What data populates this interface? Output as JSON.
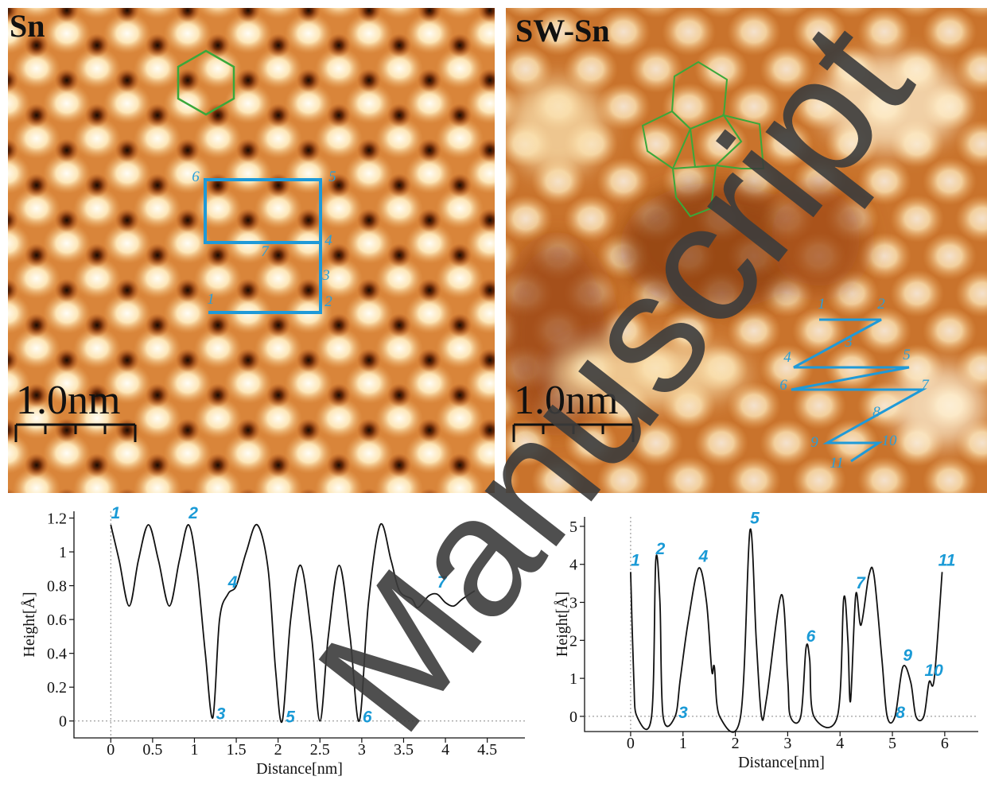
{
  "panels": [
    {
      "label": "Sn",
      "scale_bar": "1.0nm",
      "path_labels": [
        "1",
        "2",
        "3",
        "4",
        "5",
        "6",
        "7"
      ]
    },
    {
      "label": "SW-Sn",
      "scale_bar": "1.0nm",
      "path_labels": [
        "1",
        "2",
        "3",
        "4",
        "5",
        "6",
        "7",
        "8",
        "9",
        "10",
        "11"
      ]
    }
  ],
  "watermark": "Manuscript",
  "chart_data": [
    {
      "type": "line",
      "x_label": "Distance[nm]",
      "y_label": "Height[Å]",
      "color": "#111111",
      "annotation_color": "#1a9ad6",
      "zero_lines": true,
      "x": [
        0,
        0.1,
        0.22,
        0.33,
        0.45,
        0.57,
        0.7,
        0.82,
        0.93,
        1.03,
        1.13,
        1.22,
        1.3,
        1.4,
        1.5,
        1.62,
        1.75,
        1.88,
        1.97,
        2.05,
        2.15,
        2.27,
        2.4,
        2.5,
        2.6,
        2.73,
        2.86,
        2.97,
        3.08,
        3.22,
        3.35,
        3.45,
        3.6,
        3.67,
        3.8,
        3.9,
        4.0,
        4.1,
        4.2,
        4.35
      ],
      "values": [
        1.16,
        0.95,
        0.68,
        0.95,
        1.16,
        0.95,
        0.68,
        0.95,
        1.16,
        0.9,
        0.4,
        0.02,
        0.6,
        0.75,
        0.8,
        1.0,
        1.16,
        0.9,
        0.3,
        0,
        0.6,
        0.92,
        0.5,
        0,
        0.5,
        0.92,
        0.5,
        0,
        0.7,
        1.16,
        0.95,
        0.77,
        0.72,
        0.67,
        0.74,
        0.75,
        0.7,
        0.68,
        0.72,
        0.77
      ],
      "xlim": [
        -0.44,
        4.95
      ],
      "ylim": [
        -0.1,
        1.24
      ],
      "xticks": [
        0,
        0.5,
        1,
        1.5,
        2,
        2.5,
        3,
        3.5,
        4,
        4.5
      ],
      "yticks": [
        0,
        0.2,
        0.4,
        0.6,
        0.8,
        1,
        1.2
      ],
      "annotations": [
        {
          "text": "1",
          "x": 0
        },
        {
          "text": "2",
          "x": 0.93
        },
        {
          "text": "3",
          "x": 1.22
        },
        {
          "text": "4",
          "x": 1.4
        },
        {
          "text": "5",
          "x": 2.05
        },
        {
          "text": "6",
          "x": 2.97
        },
        {
          "text": "7",
          "x": 3.9
        }
      ]
    },
    {
      "type": "line",
      "x_label": "Distance[nm]",
      "y_label": "Height[Å]",
      "color": "#111111",
      "annotation_color": "#1a9ad6",
      "zero_lines": true,
      "x": [
        0,
        0.06,
        0.12,
        0.4,
        0.48,
        0.56,
        0.62,
        0.85,
        0.95,
        1.1,
        1.3,
        1.45,
        1.55,
        1.6,
        1.7,
        2.1,
        2.28,
        2.4,
        2.5,
        2.6,
        2.88,
        3.0,
        3.05,
        3.25,
        3.35,
        3.42,
        3.5,
        3.95,
        4.07,
        4.15,
        4.2,
        4.3,
        4.4,
        4.55,
        4.65,
        4.8,
        4.9,
        5.05,
        5.2,
        5.35,
        5.45,
        5.6,
        5.7,
        5.8,
        5.95
      ],
      "values": [
        3.8,
        1.0,
        0,
        0,
        4.1,
        3.0,
        0,
        0,
        1.0,
        2.5,
        3.9,
        3.0,
        1.2,
        1.3,
        0,
        0,
        4.9,
        2.0,
        0,
        0.5,
        3.2,
        1.0,
        0,
        0,
        1.8,
        1.5,
        0,
        0,
        3.1,
        2.0,
        0.4,
        3.2,
        2.4,
        3.7,
        3.7,
        1.5,
        0,
        0,
        1.3,
        0.9,
        0,
        0,
        0.9,
        1.0,
        3.8
      ],
      "xlim": [
        -0.88,
        6.64
      ],
      "ylim": [
        -0.4,
        5.25
      ],
      "xticks": [
        0,
        1,
        2,
        3,
        4,
        5,
        6
      ],
      "yticks": [
        0,
        1,
        2,
        3,
        4,
        5
      ],
      "annotations": [
        {
          "text": "1",
          "x": 0
        },
        {
          "text": "2",
          "x": 0.48
        },
        {
          "text": "3",
          "x": 0.85
        },
        {
          "text": "4",
          "x": 1.3
        },
        {
          "text": "5",
          "x": 2.28
        },
        {
          "text": "6",
          "x": 3.35
        },
        {
          "text": "7",
          "x": 4.3
        },
        {
          "text": "8",
          "x": 5.0
        },
        {
          "text": "9",
          "x": 5.2
        },
        {
          "text": "10",
          "x": 5.7
        },
        {
          "text": "11",
          "x": 5.95
        }
      ]
    }
  ]
}
